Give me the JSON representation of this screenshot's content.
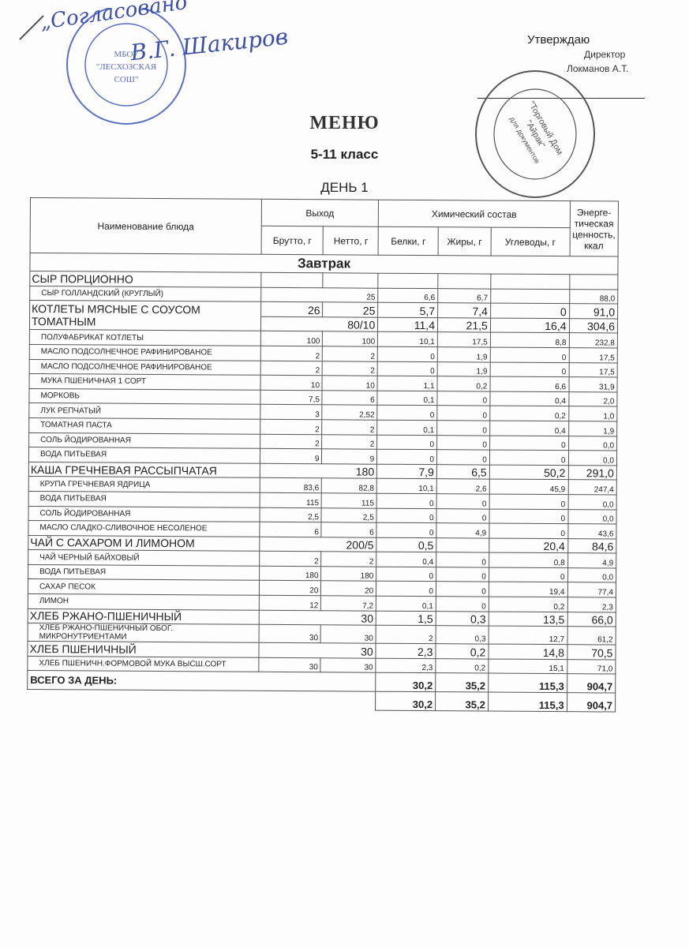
{
  "header": {
    "agreed_handwritten": "„Согласовано“",
    "agreed_signature": "В.Г. Шакиров",
    "school_stamp": "МБОУ \"ЛЕСХОЗСКАЯ СОШ\"",
    "approve": "Утверждаю",
    "director": "Директор",
    "director_name": "Локманов А.Т.",
    "company_stamp": "\"Торговый Дом \"Айрак\" для документов",
    "title": "МЕНЮ",
    "grade": "5-11 класс",
    "day": "ДЕНЬ 1"
  },
  "table": {
    "col_name": "Наименование блюда",
    "col_output": "Выход",
    "col_chem": "Химический состав",
    "col_energy": "Энерге-тическая ценность, ккал",
    "col_brutto": "Брутто, г",
    "col_netto": "Нетто, г",
    "col_protein": "Белки, г",
    "col_fat": "Жиры, г",
    "col_carb": "Углеводы, г",
    "section": "Завтрак",
    "rows": [
      {
        "name": "СЫР ПОРЦИОННО",
        "dish": true,
        "v": [
          "",
          "",
          "",
          "",
          "",
          ""
        ]
      },
      {
        "name": "СЫР ГОЛЛАНДСКИЙ (КРУГЛЫЙ)",
        "merged": "25",
        "v": [
          "6,6",
          "6,7",
          "",
          "88,0"
        ]
      },
      {
        "name": "КОТЛЕТЫ МЯСНЫЕ С СОУСОМ ТОМАТНЫМ",
        "dish": true,
        "span": 2,
        "v": [
          "26",
          "25",
          "5,7",
          "7,4",
          "0",
          "91,0"
        ]
      },
      {
        "cont": true,
        "dish": true,
        "merged": "80/10",
        "v": [
          "11,4",
          "21,5",
          "16,4",
          "304,6"
        ]
      },
      {
        "name": "ПОЛУФАБРИКАТ КОТЛЕТЫ",
        "v": [
          "100",
          "100",
          "10,1",
          "17,5",
          "8,8",
          "232,8"
        ]
      },
      {
        "name": "МАСЛО ПОДСОЛНЕЧНОЕ РАФИНИРОВАНОЕ",
        "v": [
          "2",
          "2",
          "0",
          "1,9",
          "0",
          "17,5"
        ]
      },
      {
        "name": "МАСЛО ПОДСОЛНЕЧНОЕ РАФИНИРОВАНОЕ",
        "v": [
          "2",
          "2",
          "0",
          "1,9",
          "0",
          "17,5"
        ]
      },
      {
        "name": "МУКА ПШЕНИЧНАЯ 1 СОРТ",
        "v": [
          "10",
          "10",
          "1,1",
          "0,2",
          "6,6",
          "31,9"
        ]
      },
      {
        "name": "МОРКОВЬ",
        "v": [
          "7,5",
          "6",
          "0,1",
          "0",
          "0,4",
          "2,0"
        ]
      },
      {
        "name": "ЛУК РЕПЧАТЫЙ",
        "v": [
          "3",
          "2,52",
          "0",
          "0",
          "0,2",
          "1,0"
        ]
      },
      {
        "name": "ТОМАТНАЯ ПАСТА",
        "v": [
          "2",
          "2",
          "0,1",
          "0",
          "0,4",
          "1,9"
        ]
      },
      {
        "name": "СОЛЬ ЙОДИРОВАННАЯ",
        "v": [
          "2",
          "2",
          "0",
          "0",
          "0",
          "0,0"
        ]
      },
      {
        "name": "ВОДА ПИТЬЕВАЯ",
        "v": [
          "9",
          "9",
          "0",
          "0",
          "0",
          "0,0"
        ]
      },
      {
        "name": "КАША ГРЕЧНЕВАЯ РАССЫПЧАТАЯ",
        "dish": true,
        "merged": "180",
        "v": [
          "7,9",
          "6,5",
          "50,2",
          "291,0"
        ]
      },
      {
        "name": "КРУПА ГРЕЧНЕВАЯ ЯДРИЦА",
        "v": [
          "83,6",
          "82,8",
          "10,1",
          "2,6",
          "45,9",
          "247,4"
        ]
      },
      {
        "name": "ВОДА ПИТЬЕВАЯ",
        "v": [
          "115",
          "115",
          "0",
          "0",
          "0",
          "0,0"
        ]
      },
      {
        "name": "СОЛЬ ЙОДИРОВАННАЯ",
        "v": [
          "2,5",
          "2,5",
          "0",
          "0",
          "0",
          "0,0"
        ]
      },
      {
        "name": "МАСЛО СЛАДКО-СЛИВОЧНОЕ НЕСОЛЕНОЕ",
        "v": [
          "6",
          "6",
          "0",
          "4,9",
          "0",
          "43,6"
        ]
      },
      {
        "name": "ЧАЙ С САХАРОМ И ЛИМОНОМ",
        "dish": true,
        "merged": "200/5",
        "v": [
          "0,5",
          "",
          "20,4",
          "84,6"
        ]
      },
      {
        "name": "ЧАЙ ЧЕРНЫЙ БАЙХОВЫЙ",
        "v": [
          "2",
          "2",
          "0,4",
          "0",
          "0,8",
          "4,9"
        ]
      },
      {
        "name": "ВОДА ПИТЬЕВАЯ",
        "v": [
          "180",
          "180",
          "0",
          "0",
          "0",
          "0,0"
        ]
      },
      {
        "name": "САХАР ПЕСОК",
        "v": [
          "20",
          "20",
          "0",
          "0",
          "19,4",
          "77,4"
        ]
      },
      {
        "name": "ЛИМОН",
        "v": [
          "12",
          "7,2",
          "0,1",
          "0",
          "0,2",
          "2,3"
        ]
      },
      {
        "name": "ХЛЕБ РЖАНО-ПШЕНИЧНЫЙ",
        "dish": true,
        "merged": "30",
        "v": [
          "1,5",
          "0,3",
          "13,5",
          "66,0"
        ]
      },
      {
        "name": "ХЛЕБ РЖАНО-ПШЕНИЧНЫЙ ОБОГ. МИКРОНУТРИЕНТАМИ",
        "v": [
          "30",
          "30",
          "2",
          "0,3",
          "12,7",
          "61,2"
        ]
      },
      {
        "name": "ХЛЕБ ПШЕНИЧНЫЙ",
        "dish": true,
        "merged": "30",
        "v": [
          "2,3",
          "0,2",
          "14,8",
          "70,5"
        ]
      },
      {
        "name": "ХЛЕБ ПШЕНИЧН.ФОРМОВОЙ МУКА ВЫСШ.СОРТ",
        "v": [
          "30",
          "30",
          "2,3",
          "0,2",
          "15,1",
          "71,0"
        ]
      }
    ],
    "total_label": "ВСЕГО ЗА ДЕНЬ:",
    "totals": [
      "30,2",
      "35,2",
      "115,3",
      "904,7"
    ],
    "totals2": [
      "30,2",
      "35,2",
      "115,3",
      "904,7"
    ]
  },
  "colors": {
    "ink": "#222222",
    "stamp_blue": "#3c4fa8",
    "stamp_gray": "#555555"
  }
}
